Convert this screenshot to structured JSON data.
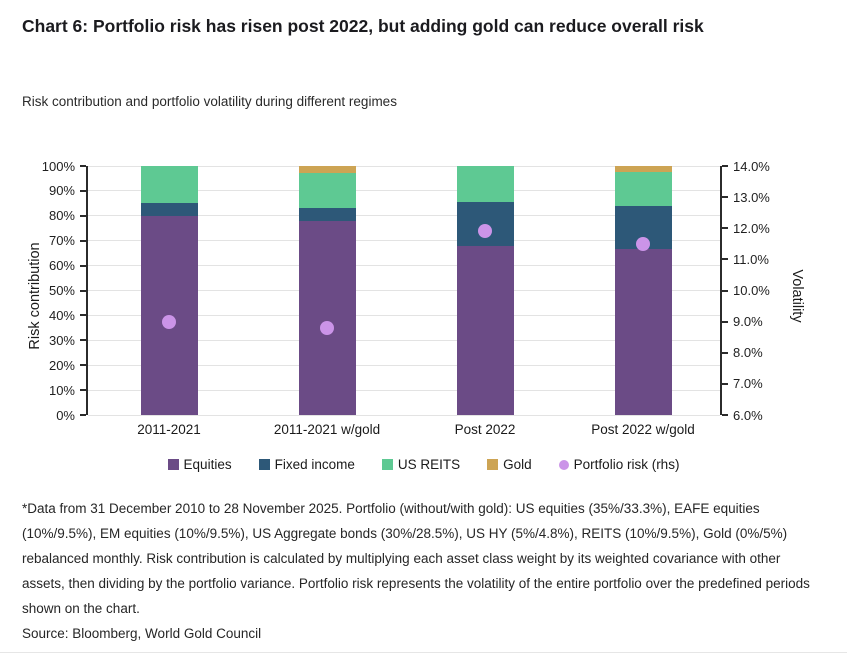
{
  "page": {
    "title": "Chart 6: Portfolio risk has risen post 2022, but adding gold can reduce overall risk",
    "subtitle": "Risk contribution and portfolio volatility during different regimes",
    "footnote": "*Data from 31 December 2010 to 28 November 2025. Portfolio (without/with gold): US equities (35%/33.3%), EAFE equities (10%/9.5%), EM equities (10%/9.5%), US Aggregate bonds (30%/28.5%), US HY (5%/4.8%), REITS (10%/9.5%), Gold (0%/5%) rebalanced monthly. Risk contribution is calculated by multiplying each asset class weight by its weighted covariance with other assets, then dividing by the portfolio variance. Portfolio risk represents the volatility of the entire portfolio over the predefined periods shown on the chart.",
    "source": "Source: Bloomberg, World Gold Council"
  },
  "chart_data": {
    "type": "bar",
    "subtype": "stacked-percent-with-scatter-overlay",
    "title": "Chart 6: Portfolio risk has risen post 2022, but adding gold can reduce overall risk",
    "subtitle": "Risk contribution and portfolio volatility during different regimes",
    "categories": [
      "2011-2021",
      "2011-2021 w/gold",
      "Post 2022",
      "Post 2022 w/gold"
    ],
    "series": [
      {
        "name": "Equities",
        "color": "#6b4b86",
        "values": [
          80.0,
          78.0,
          68.0,
          66.5
        ]
      },
      {
        "name": "Fixed income",
        "color": "#2d5878",
        "values": [
          5.0,
          5.0,
          17.5,
          17.5
        ]
      },
      {
        "name": "US REITS",
        "color": "#5ec993",
        "values": [
          15.0,
          14.0,
          14.5,
          13.5
        ]
      },
      {
        "name": "Gold",
        "color": "#cda454",
        "values": [
          0.0,
          3.0,
          0.0,
          2.5
        ]
      }
    ],
    "scatter_series": {
      "name": "Portfolio risk (rhs)",
      "color": "#cb94e8",
      "axis": "right",
      "values": [
        9.0,
        8.8,
        11.9,
        11.5
      ]
    },
    "left_axis": {
      "label": "Risk contribution",
      "min": 0,
      "max": 100,
      "step": 10,
      "tick_labels": [
        "0%",
        "10%",
        "20%",
        "30%",
        "40%",
        "50%",
        "60%",
        "70%",
        "80%",
        "90%",
        "100%"
      ]
    },
    "right_axis": {
      "label": "Volatility",
      "min": 6,
      "max": 14,
      "step": 1,
      "tick_labels": [
        "6.0%",
        "7.0%",
        "8.0%",
        "9.0%",
        "10.0%",
        "11.0%",
        "12.0%",
        "13.0%",
        "14.0%"
      ]
    },
    "grid": true,
    "legend_position": "bottom"
  }
}
